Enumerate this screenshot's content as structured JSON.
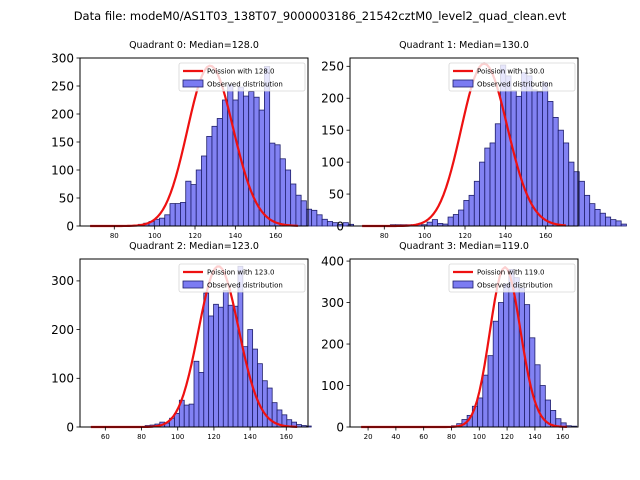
{
  "figure": {
    "suptitle": "Data file: modeM0/AS1T03_138T07_9000003186_21542cztM0_level2_quad_clean.evt"
  },
  "colors": {
    "bar_fill": "#7b7bf2",
    "bar_edge": "#1e1e6a",
    "poisson_line": "#ee1111",
    "axis": "#000000"
  },
  "chart_data": [
    {
      "type": "bar",
      "title": "Quadrant 0: Median=128.0",
      "median": 128.0,
      "xlim": [
        63,
        176
      ],
      "ylim": [
        0,
        300
      ],
      "xticks": [
        80,
        100,
        120,
        140,
        160
      ],
      "yticks": [
        0,
        50,
        100,
        150,
        200,
        250,
        300
      ],
      "legend": [
        "Poission with 128.0",
        "Observed distribution"
      ],
      "legend_position": "upper right",
      "bin_width": 2.6,
      "bins_start": 92,
      "values": [
        3,
        5,
        8,
        12,
        14,
        20,
        40,
        40,
        42,
        80,
        74,
        100,
        125,
        160,
        178,
        192,
        225,
        252,
        225,
        248,
        232,
        240,
        230,
        207,
        285,
        148,
        145,
        120,
        100,
        75,
        55,
        45,
        30,
        28,
        20,
        12,
        8,
        6,
        3,
        6,
        3
      ],
      "poisson_curve": {
        "mean": 128.0,
        "peak": 286,
        "x_range": [
          68,
          171
        ]
      }
    },
    {
      "type": "bar",
      "title": "Quadrant 1: Median=130.0",
      "median": 130.0,
      "xlim": [
        63,
        176
      ],
      "ylim": [
        0,
        263
      ],
      "xticks": [
        80,
        100,
        120,
        140,
        160
      ],
      "yticks": [
        0,
        50,
        100,
        150,
        200,
        250
      ],
      "legend": [
        "Poission with 130.0",
        "Observed distribution"
      ],
      "legend_position": "upper right",
      "bin_width": 2.6,
      "bins_start": 83,
      "values": [
        2,
        2,
        2,
        2,
        2,
        3,
        2,
        6,
        10,
        4,
        3,
        14,
        18,
        25,
        40,
        48,
        70,
        100,
        122,
        130,
        160,
        252,
        235,
        212,
        203,
        240,
        235,
        213,
        210,
        225,
        195,
        170,
        150,
        130,
        100,
        85,
        70,
        48,
        35,
        26,
        20,
        14,
        10,
        8,
        3
      ],
      "poisson_curve": {
        "mean": 130.0,
        "peak": 254,
        "x_range": [
          69,
          170
        ]
      }
    },
    {
      "type": "bar",
      "title": "Quadrant 2: Median=123.0",
      "median": 123.0,
      "xlim": [
        46,
        172
      ],
      "ylim": [
        0,
        345
      ],
      "xticks": [
        60,
        80,
        100,
        120,
        140,
        160
      ],
      "yticks": [
        0,
        100,
        200,
        300
      ],
      "legend": [
        "Poission with 123.0",
        "Observed distribution"
      ],
      "legend_position": "upper right",
      "bin_width": 2.7,
      "bins_start": 82,
      "values": [
        3,
        4,
        6,
        10,
        8,
        18,
        28,
        55,
        45,
        47,
        135,
        112,
        275,
        228,
        252,
        246,
        280,
        250,
        248,
        330,
        165,
        200,
        160,
        130,
        95,
        80,
        50,
        35,
        25,
        15,
        10,
        5,
        3,
        2
      ],
      "poisson_curve": {
        "mean": 123.0,
        "peak": 330,
        "x_range": [
          52,
          166
        ]
      }
    },
    {
      "type": "bar",
      "title": "Quadrant 3: Median=119.0",
      "median": 119.0,
      "xlim": [
        7,
        171
      ],
      "ylim": [
        0,
        405
      ],
      "xticks": [
        20,
        40,
        60,
        80,
        100,
        120,
        140,
        160
      ],
      "yticks": [
        0,
        100,
        200,
        300,
        400
      ],
      "legend": [
        "Poission with 119.0",
        "Observed distribution"
      ],
      "legend_position": "upper right",
      "bin_width": 3.75,
      "bins_start": 80,
      "values": [
        3,
        8,
        18,
        28,
        50,
        70,
        125,
        172,
        255,
        300,
        345,
        380,
        360,
        335,
        295,
        215,
        150,
        100,
        65,
        40,
        20,
        10,
        3,
        2
      ],
      "poisson_curve": {
        "mean": 119.0,
        "peak": 385,
        "x_range": [
          15,
          163
        ]
      }
    }
  ]
}
